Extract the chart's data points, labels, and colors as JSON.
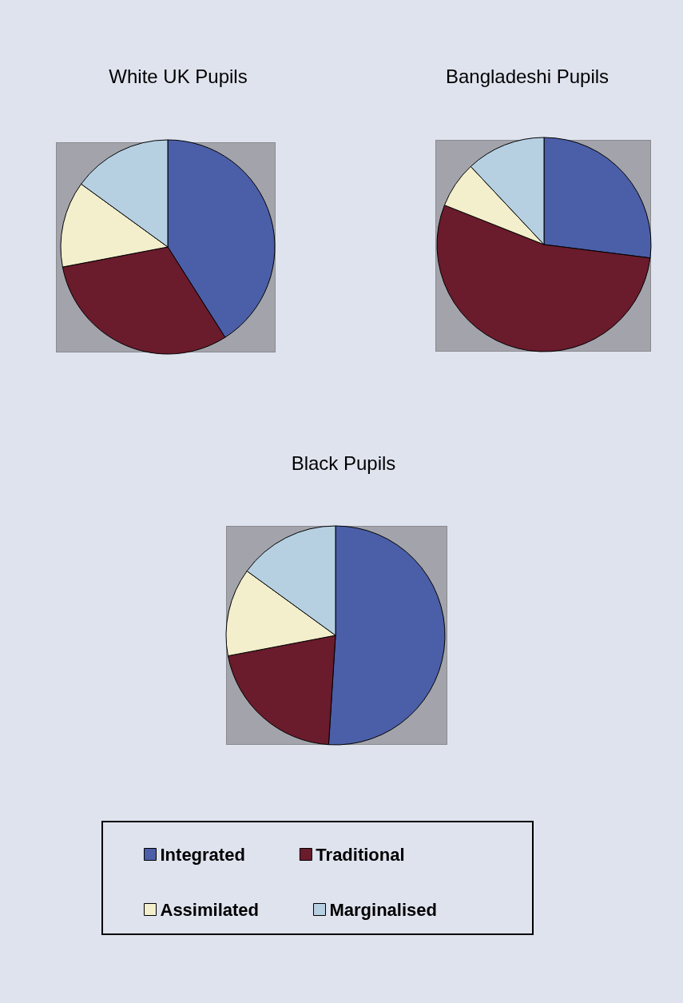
{
  "chart_data": [
    {
      "type": "pie",
      "title": "White UK Pupils",
      "categories": [
        null,
        null,
        null,
        null
      ],
      "values": [
        41,
        31,
        13,
        15
      ],
      "colors": [
        "#4b5ea8",
        "#6a1b2c",
        "#f3eecb",
        "#b6d0e2"
      ]
    },
    {
      "type": "pie",
      "title": "Bangladeshi Pupils",
      "categories": [
        null,
        null,
        null,
        null
      ],
      "values": [
        27,
        54,
        7,
        12
      ],
      "colors": [
        "#4b5ea8",
        "#6a1b2c",
        "#f3eecb",
        "#b6d0e2"
      ]
    },
    {
      "type": "pie",
      "title": "Black Pupils",
      "categories": [
        "Integrated",
        "Traditional",
        "Assimilated",
        "Marginalised"
      ],
      "values": [
        51,
        21,
        13,
        15
      ],
      "colors": [
        "#4b5ea8",
        "#6a1b2c",
        "#f3eecb",
        "#b6d0e2"
      ],
      "legend": "bottom"
    }
  ]
}
